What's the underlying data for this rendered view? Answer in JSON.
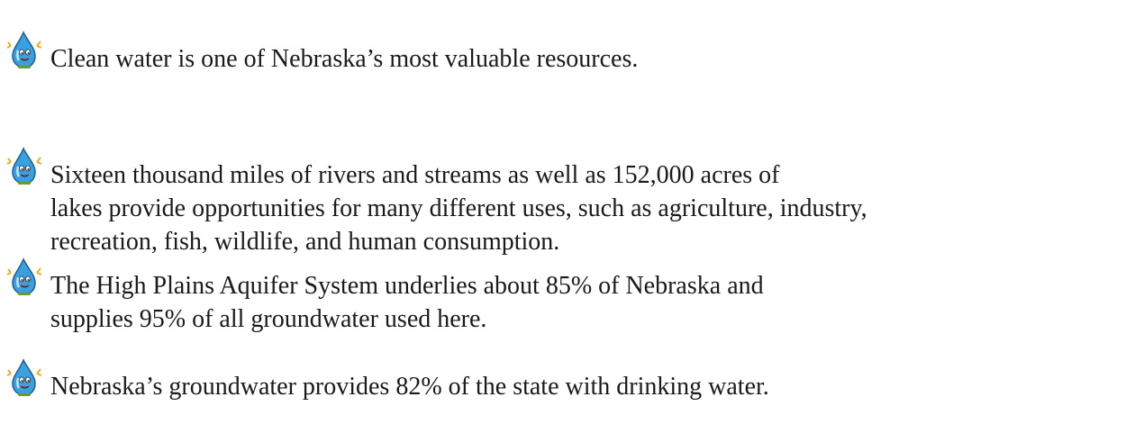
{
  "bullets": [
    {
      "lines": [
        "Clean water is one of Nebraska’s most valuable resources."
      ]
    },
    {
      "lines": [
        "Sixteen thousand miles of rivers and streams as well as 152,000 acres of",
        "lakes provide opportunities for many different uses, such as agriculture, industry,",
        "recreation, fish, wildlife, and human consumption."
      ]
    },
    {
      "lines": [
        "The High Plains Aquifer System underlies about 85% of Nebraska and",
        "supplies 95% of all groundwater used here."
      ]
    },
    {
      "lines": [
        "Nebraska’s groundwater provides 82% of the state with drinking water."
      ]
    }
  ]
}
